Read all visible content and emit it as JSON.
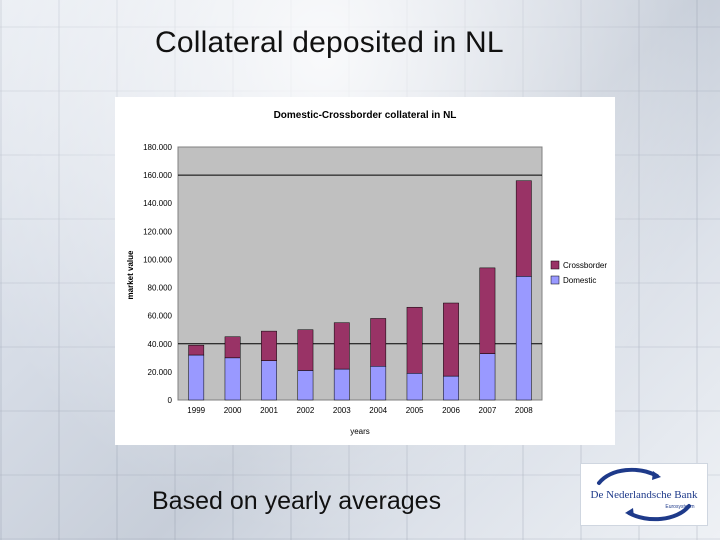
{
  "slide": {
    "title": "Collateral deposited in NL",
    "footer": "Based on yearly averages"
  },
  "logo": {
    "name": "De Nederlandsche Bank",
    "tagline": "Eurosysteem",
    "color": "#1e3a8a"
  },
  "chart_data": {
    "type": "bar",
    "stacked": true,
    "title": "Domestic-Crossborder collateral in NL",
    "xlabel": "years",
    "ylabel": "market value",
    "categories": [
      "1999",
      "2000",
      "2001",
      "2002",
      "2003",
      "2004",
      "2005",
      "2006",
      "2007",
      "2008"
    ],
    "series": [
      {
        "name": "Domestic",
        "color": "#9999ff",
        "values": [
          32000,
          30000,
          28000,
          21000,
          22000,
          24000,
          19000,
          17000,
          33000,
          88000
        ]
      },
      {
        "name": "Crossborder",
        "color": "#993366",
        "values": [
          7000,
          15000,
          21000,
          29000,
          33000,
          34000,
          47000,
          52000,
          61000,
          68000
        ]
      }
    ],
    "ylim": [
      0,
      180000
    ],
    "yticks": [
      0,
      20000,
      40000,
      60000,
      80000,
      100000,
      120000,
      140000,
      160000,
      180000
    ],
    "ytick_labels": [
      "0",
      "20.000",
      "40.000",
      "60.000",
      "80.000",
      "100.000",
      "120.000",
      "140.000",
      "160.000",
      "180.000"
    ],
    "grid_lines_at": [
      40000,
      160000
    ],
    "plot_background": "#c0c0c0",
    "legend_placement": "right"
  }
}
